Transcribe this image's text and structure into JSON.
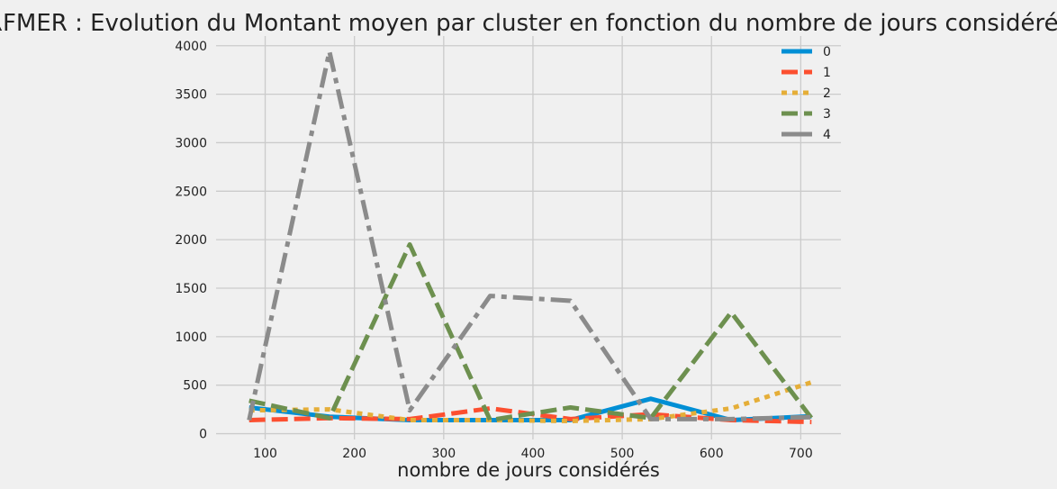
{
  "chart_data": {
    "type": "line",
    "title": "RFMER : Evolution du Montant moyen par cluster en fonction du nombre de jours considérés",
    "xlabel": "nombre de jours considérés",
    "ylabel": "",
    "xlim": [
      45,
      745
    ],
    "ylim": [
      -60,
      4100
    ],
    "x_ticks": [
      100,
      200,
      300,
      400,
      500,
      600,
      700
    ],
    "y_ticks": [
      0,
      500,
      1000,
      1500,
      2000,
      2500,
      3000,
      3500,
      4000
    ],
    "grid": true,
    "legend_position": "top-right",
    "x": [
      82,
      172,
      262,
      352,
      442,
      532,
      622,
      712
    ],
    "series": [
      {
        "name": "0",
        "color": "#008fd5",
        "style": "solid",
        "values": [
          270,
          175,
          140,
          140,
          140,
          360,
          140,
          180
        ]
      },
      {
        "name": "1",
        "color": "#fc4f30",
        "style": "dashed",
        "values": [
          140,
          160,
          150,
          260,
          150,
          200,
          140,
          120
        ]
      },
      {
        "name": "2",
        "color": "#e5ae38",
        "style": "dotted",
        "values": [
          240,
          250,
          140,
          140,
          130,
          150,
          260,
          530
        ]
      },
      {
        "name": "3",
        "color": "#6d904f",
        "style": "dashed",
        "values": [
          340,
          160,
          1950,
          140,
          270,
          160,
          1250,
          160
        ]
      },
      {
        "name": "4",
        "color": "#8b8b8b",
        "style": "dashdot",
        "values": [
          140,
          3940,
          240,
          1420,
          1370,
          150,
          150,
          170
        ]
      }
    ]
  }
}
